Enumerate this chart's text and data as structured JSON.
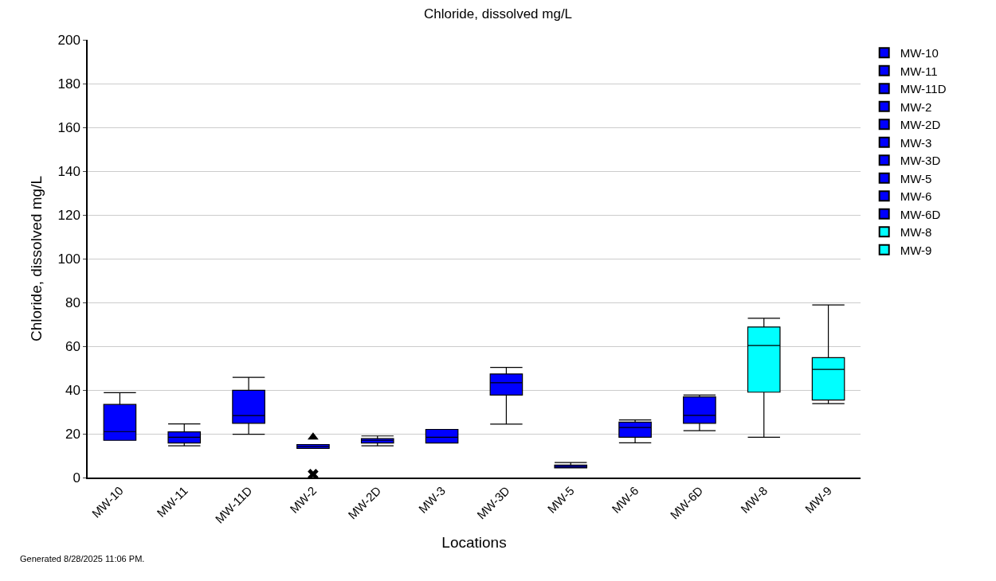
{
  "chart_data": {
    "type": "box",
    "title": "Chloride, dissolved mg/L",
    "xlabel": "Locations",
    "ylabel": "Chloride, dissolved mg/L",
    "categories": [
      "MW-10",
      "MW-11",
      "MW-11D",
      "MW-2",
      "MW-2D",
      "MW-3",
      "MW-3D",
      "MW-5",
      "MW-6",
      "MW-6D",
      "MW-8",
      "MW-9"
    ],
    "series": [
      {
        "name": "MW-10",
        "color": "#0000ff",
        "boxes": [
          {
            "low": 17.0,
            "q1": 17.0,
            "median": 21.0,
            "q3": 33.4,
            "high": 38.8
          },
          null,
          null,
          null,
          null,
          null,
          null,
          null,
          null,
          null,
          null,
          null
        ]
      },
      {
        "name": "MW-11",
        "color": "#0000ff",
        "boxes": [
          null,
          {
            "low": 14.5,
            "q1": 15.8,
            "median": 18.4,
            "q3": 20.9,
            "high": 24.5
          },
          null,
          null,
          null,
          null,
          null,
          null,
          null,
          null,
          null,
          null
        ]
      },
      {
        "name": "MW-11D",
        "color": "#0000ff",
        "boxes": [
          null,
          null,
          {
            "low": 19.8,
            "q1": 24.8,
            "median": 28.3,
            "q3": 39.9,
            "high": 45.8
          },
          null,
          null,
          null,
          null,
          null,
          null,
          null,
          null,
          null
        ]
      },
      {
        "name": "MW-2",
        "color": "#0000ff",
        "boxes": [
          null,
          null,
          null,
          {
            "low": 13.3,
            "q1": 13.3,
            "median": 14.2,
            "q3": 15.1,
            "high": 15.1,
            "outliers": [
              18.5,
              1.5
            ]
          },
          null,
          null,
          null,
          null,
          null,
          null,
          null,
          null
        ]
      },
      {
        "name": "MW-2D",
        "color": "#0000ff",
        "boxes": [
          null,
          null,
          null,
          null,
          {
            "low": 14.5,
            "q1": 15.8,
            "median": 17.0,
            "q3": 17.8,
            "high": 19.0
          },
          null,
          null,
          null,
          null,
          null,
          null,
          null
        ]
      },
      {
        "name": "MW-3",
        "color": "#0000ff",
        "boxes": [
          null,
          null,
          null,
          null,
          null,
          {
            "low": 15.8,
            "q1": 15.8,
            "median": 18.4,
            "q3": 22.0,
            "high": 22.0
          },
          null,
          null,
          null,
          null,
          null,
          null
        ]
      },
      {
        "name": "MW-3D",
        "color": "#0000ff",
        "boxes": [
          null,
          null,
          null,
          null,
          null,
          null,
          {
            "low": 24.4,
            "q1": 37.7,
            "median": 43.3,
            "q3": 47.3,
            "high": 50.3
          },
          null,
          null,
          null,
          null,
          null
        ]
      },
      {
        "name": "MW-5",
        "color": "#0000ff",
        "boxes": [
          null,
          null,
          null,
          null,
          null,
          null,
          null,
          {
            "low": 4.4,
            "q1": 4.4,
            "median": 5.0,
            "q3": 5.7,
            "high": 6.9
          },
          null,
          null,
          null,
          null
        ]
      },
      {
        "name": "MW-6",
        "color": "#0000ff",
        "boxes": [
          null,
          null,
          null,
          null,
          null,
          null,
          null,
          null,
          {
            "low": 15.9,
            "q1": 18.4,
            "median": 22.9,
            "q3": 25.3,
            "high": 26.3
          },
          null,
          null,
          null
        ]
      },
      {
        "name": "MW-6D",
        "color": "#0000ff",
        "boxes": [
          null,
          null,
          null,
          null,
          null,
          null,
          null,
          null,
          null,
          {
            "low": 21.4,
            "q1": 24.8,
            "median": 28.4,
            "q3": 36.9,
            "high": 37.7
          },
          null,
          null
        ]
      },
      {
        "name": "MW-8",
        "color": "#00ffff",
        "boxes": [
          null,
          null,
          null,
          null,
          null,
          null,
          null,
          null,
          null,
          null,
          {
            "low": 18.4,
            "q1": 39.0,
            "median": 60.3,
            "q3": 68.8,
            "high": 72.8
          },
          null
        ]
      },
      {
        "name": "MW-9",
        "color": "#00ffff",
        "boxes": [
          null,
          null,
          null,
          null,
          null,
          null,
          null,
          null,
          null,
          null,
          null,
          {
            "low": 33.8,
            "q1": 35.4,
            "median": 49.4,
            "q3": 54.8,
            "high": 78.9
          }
        ]
      }
    ],
    "ylim": [
      0,
      200
    ],
    "yticks": [
      0,
      20,
      40,
      60,
      80,
      100,
      120,
      140,
      160,
      180,
      200
    ],
    "grid": "y",
    "legend": "top right",
    "annotations": [
      "Generated 8/28/2025 11:06 PM."
    ]
  }
}
